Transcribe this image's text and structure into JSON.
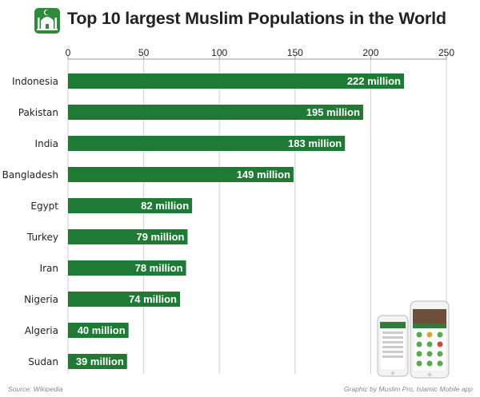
{
  "chart_data": {
    "type": "bar",
    "orientation": "horizontal",
    "title": "Top 10 largest Muslim Populations in the World",
    "categories": [
      "Indonesia",
      "Pakistan",
      "India",
      "Bangladesh",
      "Egypt",
      "Turkey",
      "Iran",
      "Nigeria",
      "Algeria",
      "Sudan"
    ],
    "values": [
      222,
      195,
      183,
      149,
      82,
      79,
      78,
      74,
      40,
      39
    ],
    "value_labels": [
      "222 million",
      "195 million",
      "183 million",
      "149 million",
      "82 million",
      "79 million",
      "78 million",
      "74 million",
      "40 million",
      "39 million"
    ],
    "xlim": [
      0,
      250
    ],
    "xticks": [
      0,
      50,
      100,
      150,
      200,
      250
    ],
    "xaxis_position": "top",
    "grid": true,
    "bar_color": "#1e7a34",
    "xlabel": "",
    "ylabel": ""
  },
  "footer": {
    "source": "Source: Wikipedia",
    "credit": "Graphic by Muslim Pro, Islamic Mobile app"
  },
  "icons": {
    "logo": "mosque-icon",
    "promo": "phone-app-screenshots"
  }
}
